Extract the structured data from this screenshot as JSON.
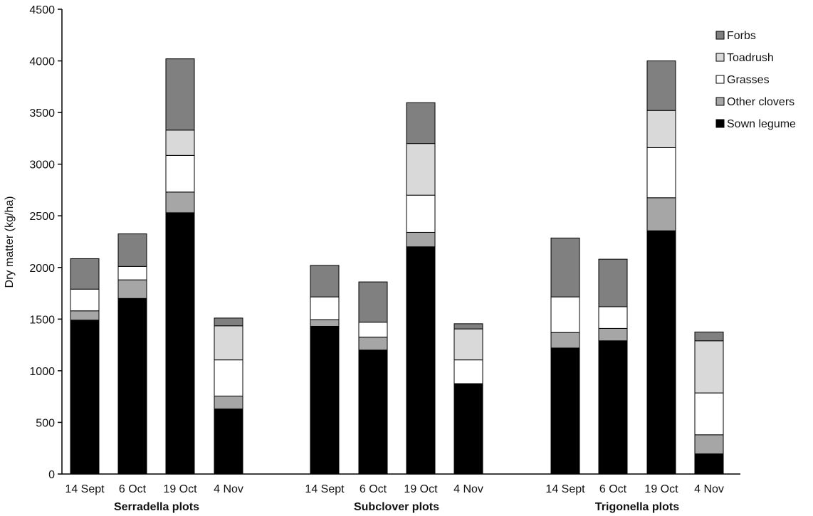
{
  "chart_data": {
    "type": "bar",
    "stacked": true,
    "title": "",
    "xlabel": "",
    "ylabel": "Dry matter (kg/ha)",
    "ylim": [
      0,
      4500
    ],
    "yticks": [
      0,
      500,
      1000,
      1500,
      2000,
      2500,
      3000,
      3500,
      4000,
      4500
    ],
    "grid": false,
    "legend_position": "top-right",
    "groups": [
      {
        "label": "Serradella plots",
        "categories": [
          "14 Sept",
          "6 Oct",
          "19 Oct",
          "4 Nov"
        ]
      },
      {
        "label": "Subclover plots",
        "categories": [
          "14 Sept",
          "6 Oct",
          "19 Oct",
          "4 Nov"
        ]
      },
      {
        "label": "Trigonella plots",
        "categories": [
          "14 Sept",
          "6 Oct",
          "19 Oct",
          "4 Nov"
        ]
      }
    ],
    "series": [
      {
        "name": "Sown legume",
        "color": "#000000",
        "values": [
          1490,
          1700,
          2530,
          630,
          1430,
          1200,
          2200,
          875,
          1220,
          1290,
          2355,
          195
        ]
      },
      {
        "name": "Other clovers",
        "color": "#a6a6a6",
        "values": [
          90,
          180,
          200,
          125,
          65,
          125,
          140,
          0,
          150,
          120,
          320,
          185
        ]
      },
      {
        "name": "Grasses",
        "color": "#ffffff",
        "values": [
          210,
          130,
          355,
          350,
          220,
          145,
          360,
          230,
          345,
          210,
          485,
          405
        ]
      },
      {
        "name": "Toadrush",
        "color": "#d9d9d9",
        "values": [
          0,
          0,
          245,
          330,
          0,
          0,
          500,
          300,
          0,
          0,
          360,
          505
        ]
      },
      {
        "name": "Forbs",
        "color": "#808080",
        "values": [
          295,
          315,
          690,
          75,
          305,
          390,
          395,
          50,
          570,
          460,
          480,
          85
        ]
      }
    ]
  }
}
